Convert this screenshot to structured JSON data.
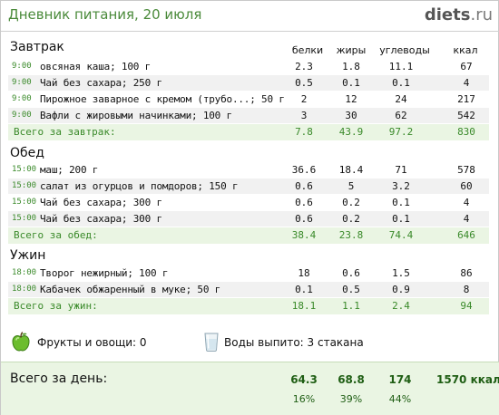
{
  "header": {
    "title": "Дневник питания, 20 июля",
    "brand_name": "diets",
    "brand_dot": ".",
    "brand_tld": "ru"
  },
  "columns": {
    "protein": "белки",
    "fat": "жиры",
    "carbs": "углеводы",
    "kcal": "ккал"
  },
  "meals": [
    {
      "title": "Завтрак",
      "items": [
        {
          "time": "9:00",
          "food": "овсяная каша; 100 г",
          "protein": "2.3",
          "fat": "1.8",
          "carbs": "11.1",
          "kcal": "67"
        },
        {
          "time": "9:00",
          "food": "Чай без сахара; 250 г",
          "protein": "0.5",
          "fat": "0.1",
          "carbs": "0.1",
          "kcal": "4"
        },
        {
          "time": "9:00",
          "food": "Пирожное заварное с кремом (трубо...; 50 г",
          "protein": "2",
          "fat": "12",
          "carbs": "24",
          "kcal": "217"
        },
        {
          "time": "9:00",
          "food": "Вафли с жировыми начинками; 100 г",
          "protein": "3",
          "fat": "30",
          "carbs": "62",
          "kcal": "542"
        }
      ],
      "total": {
        "label": "Всего за завтрак:",
        "protein": "7.8",
        "fat": "43.9",
        "carbs": "97.2",
        "kcal": "830"
      }
    },
    {
      "title": "Обед",
      "items": [
        {
          "time": "15:00",
          "food": "маш; 200 г",
          "protein": "36.6",
          "fat": "18.4",
          "carbs": "71",
          "kcal": "578"
        },
        {
          "time": "15:00",
          "food": "салат из огурцов и помдоров; 150 г",
          "protein": "0.6",
          "fat": "5",
          "carbs": "3.2",
          "kcal": "60"
        },
        {
          "time": "15:00",
          "food": "Чай без сахара; 300 г",
          "protein": "0.6",
          "fat": "0.2",
          "carbs": "0.1",
          "kcal": "4"
        },
        {
          "time": "15:00",
          "food": "Чай без сахара; 300 г",
          "protein": "0.6",
          "fat": "0.2",
          "carbs": "0.1",
          "kcal": "4"
        }
      ],
      "total": {
        "label": "Всего за обед:",
        "protein": "38.4",
        "fat": "23.8",
        "carbs": "74.4",
        "kcal": "646"
      }
    },
    {
      "title": "Ужин",
      "items": [
        {
          "time": "18:00",
          "food": "Творог нежирный; 100 г",
          "protein": "18",
          "fat": "0.6",
          "carbs": "1.5",
          "kcal": "86"
        },
        {
          "time": "18:00",
          "food": "Кабачек обжаренный в муке; 50 г",
          "protein": "0.1",
          "fat": "0.5",
          "carbs": "0.9",
          "kcal": "8"
        }
      ],
      "total": {
        "label": "Всего за ужин:",
        "protein": "18.1",
        "fat": "1.1",
        "carbs": "2.4",
        "kcal": "94"
      }
    }
  ],
  "extras": {
    "fruits_label": "Фрукты и овощи: 0",
    "water_label": "Воды выпито: 3 стакана"
  },
  "day_total": {
    "label": "Всего за день:",
    "protein": "64.3",
    "fat": "68.8",
    "carbs": "174",
    "kcal": "1570 ккал",
    "protein_pct": "16%",
    "fat_pct": "39%",
    "carbs_pct": "44%"
  },
  "icons": {
    "fruit": "apple-icon",
    "water": "glass-icon"
  },
  "colors": {
    "accent": "#3a8a2a",
    "title": "#4a8a3a",
    "total_bg": "#eaf5e3",
    "row_alt": "#f1f1f1"
  }
}
